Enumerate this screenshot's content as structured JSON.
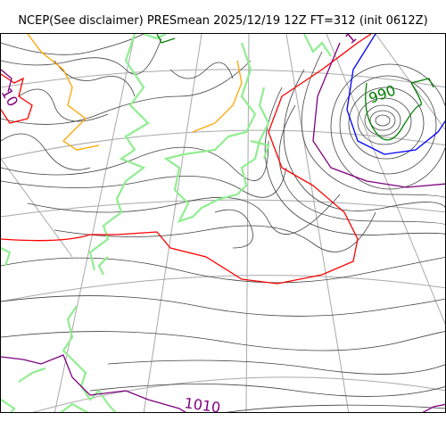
{
  "title": "NCEP(See disclaimer) PRESmean 2025/12/19 12Z FT=312 (init 0612Z)",
  "contour_labels": {
    "low_center": "990",
    "south": "1010",
    "top_partial": "10",
    "top_right_partial": "1"
  },
  "colors": {
    "isobar": "#404040",
    "coast": "#90ee90",
    "graticule": "#a9a9a9",
    "red": "#ff0000",
    "orange": "#ffa500",
    "blue": "#0000ff",
    "green": "#008000",
    "purple": "#800080"
  }
}
